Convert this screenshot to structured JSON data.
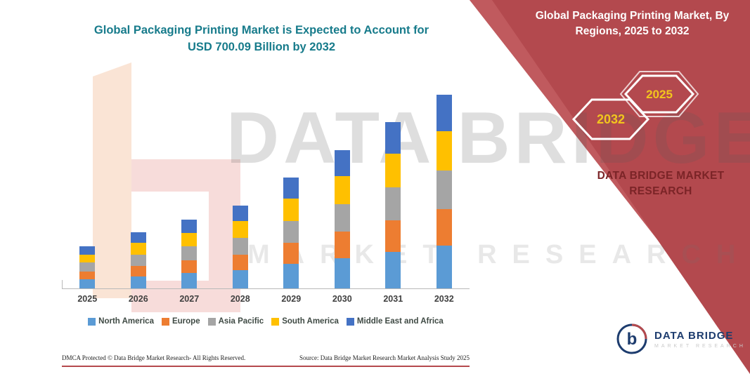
{
  "header": {
    "title_line1": "Global Packaging Printing Market is Expected to Account for",
    "title_line2": "USD 700.09 Billion by 2032",
    "title_color": "#177b8b"
  },
  "side_panel": {
    "heading_line1": "Global Packaging Printing Market, By",
    "heading_line2": "Regions, 2025 to 2032",
    "badge_back_year": "2032",
    "badge_front_year": "2025",
    "brand_line1": "DATA BRIDGE MARKET",
    "brand_line2": "RESEARCH",
    "panel_color": "#b3494e",
    "badge_text_color": "#f2c51d"
  },
  "watermark": {
    "line1": "DATA BRIDGE",
    "line2": "MARKET RESEARCH"
  },
  "footer": {
    "left": "DMCA Protected © Data Bridge Market Research-  All Rights Reserved.",
    "right": "Source: Data Bridge Market Research  Market Analysis Study 2025"
  },
  "logo": {
    "monogram": "b",
    "name": "DATA BRIDGE",
    "subtitle": "MARKET RESEARCH"
  },
  "chart_data": {
    "type": "bar",
    "stacked": true,
    "title": "Global Packaging Printing Market is Expected to Account for USD 700.09 Billion by 2032",
    "unit": "USD Billion",
    "xlabel": "",
    "ylabel": "",
    "ylim": [
      0,
      710
    ],
    "grid": false,
    "legend_position": "bottom",
    "categories": [
      "2025",
      "2026",
      "2027",
      "2028",
      "2029",
      "2030",
      "2031",
      "2032"
    ],
    "series": [
      {
        "name": "North America",
        "color": "#5B9BD5",
        "values": [
          33,
          44,
          55,
          66,
          88,
          110,
          132,
          154
        ]
      },
      {
        "name": "Europe",
        "color": "#ED7D31",
        "values": [
          29,
          38,
          47,
          57,
          76,
          95,
          114,
          133
        ]
      },
      {
        "name": "Asia Pacific",
        "color": "#A5A5A5",
        "values": [
          31,
          41,
          50,
          60,
          80,
          100,
          120,
          140
        ]
      },
      {
        "name": "South America",
        "color": "#FFC000",
        "values": [
          30,
          41,
          49,
          60,
          80,
          100,
          120,
          140
        ]
      },
      {
        "name": "Middle East and Africa",
        "color": "#4472C4",
        "values": [
          29,
          38,
          47,
          57,
          76,
          95,
          114,
          133.09
        ]
      }
    ],
    "totals_note": "2032 total equals 700.09"
  }
}
